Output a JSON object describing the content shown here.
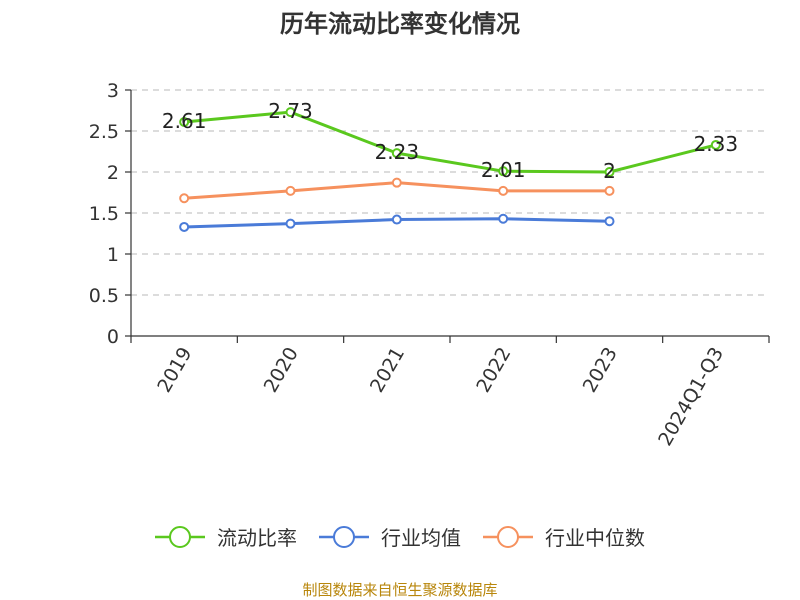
{
  "chart_data": {
    "type": "line",
    "title": "历年流动比率变化情况",
    "categories": [
      "2019",
      "2020",
      "2021",
      "2022",
      "2023",
      "2024Q1-Q3"
    ],
    "ylim": [
      0,
      3
    ],
    "yticks": [
      "0",
      "0.5",
      "1",
      "1.5",
      "2",
      "2.5",
      "3"
    ],
    "grid": true,
    "legend_position": "bottom",
    "series": [
      {
        "name": "流动比率",
        "color": "#5ac81e",
        "values": [
          2.61,
          2.73,
          2.23,
          2.01,
          2.0,
          2.33
        ],
        "labels": [
          "2.61",
          "2.73",
          "2.23",
          "2.01",
          "2",
          "2.33"
        ]
      },
      {
        "name": "行业均值",
        "color": "#4a7bd8",
        "values": [
          1.33,
          1.37,
          1.42,
          1.43,
          1.4,
          null
        ]
      },
      {
        "name": "行业中位数",
        "color": "#f6915e",
        "values": [
          1.68,
          1.77,
          1.87,
          1.77,
          1.77,
          null
        ]
      }
    ],
    "source": "制图数据来自恒生聚源数据库"
  }
}
